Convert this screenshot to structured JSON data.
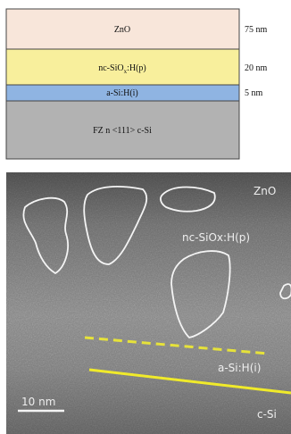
{
  "stack": {
    "layers": [
      {
        "label": "ZnO",
        "thickness": "75 nm"
      },
      {
        "label": {
          "main": "nc-SiO",
          "sub": "x",
          "rest": ":H(p)"
        },
        "thickness": "20 nm"
      },
      {
        "label": "a-Si:H(i)",
        "thickness": "5 nm"
      },
      {
        "label": "FZ n <111> c-Si"
      }
    ]
  },
  "tem": {
    "labels": [
      "ZnO",
      "nc-SiOx:H(p)",
      "a-Si:H(i)",
      "c-Si"
    ],
    "scale_bar": "10 nm"
  }
}
